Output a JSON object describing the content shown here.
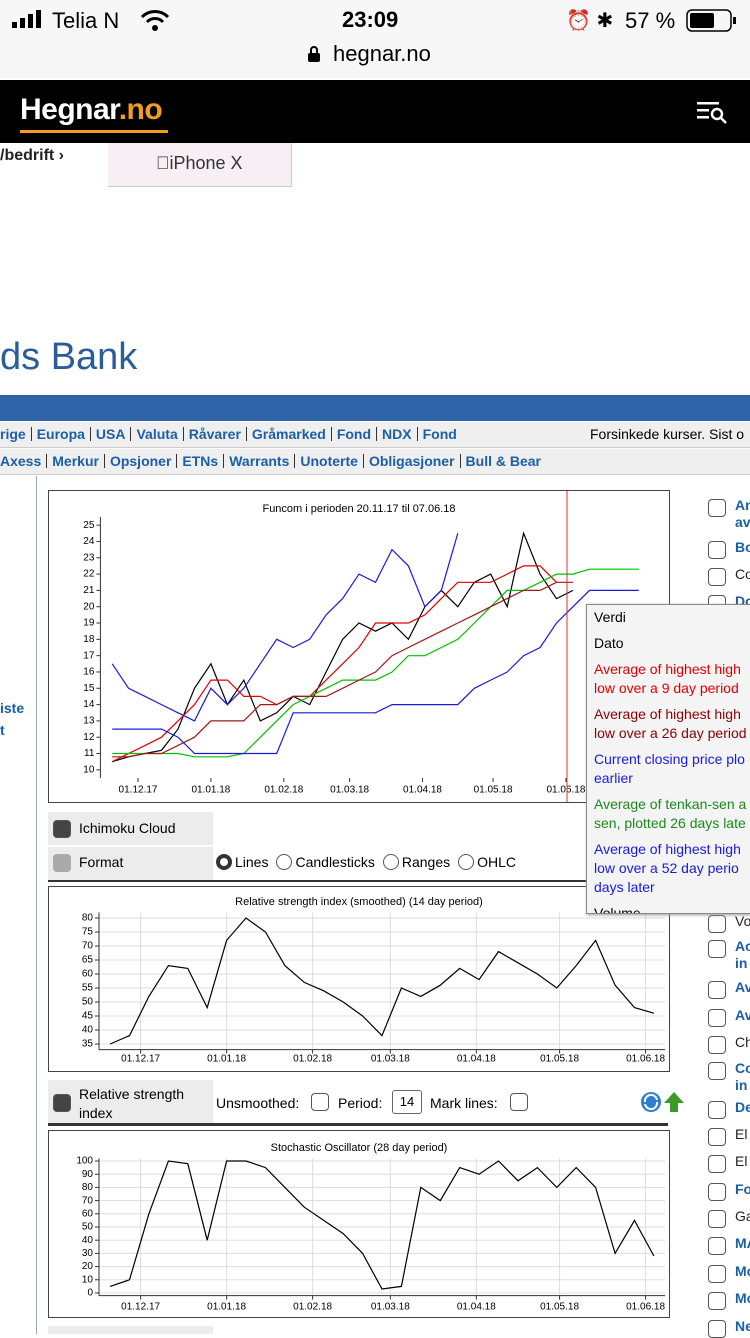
{
  "status": {
    "carrier": "Telia N",
    "time": "23:09",
    "battery": "57 %",
    "url": "hegnar.no"
  },
  "header": {
    "logo_main": "Hegnar",
    "logo_accent": ".no"
  },
  "breadcrumb": "/bedrift ›",
  "ad": "iPhone X",
  "bank_title": "ds Bank",
  "nav1": [
    "rige",
    "Europa",
    "USA",
    "Valuta",
    "Råvarer",
    "Gråmarked",
    "Fond",
    "NDX",
    "Fond"
  ],
  "delayed": "Forsinkede kurser. Sist o",
  "nav2": [
    "Axess",
    "Merkur",
    "Opsjoner",
    "ETNs",
    "Warrants",
    "Unoterte",
    "Obligasjoner",
    "Bull & Bear"
  ],
  "left_links": [
    "iste",
    "t"
  ],
  "controls": {
    "ichimoku": "Ichimoku Cloud",
    "format": "Format",
    "format_options": [
      "Lines",
      "Candlesticks",
      "Ranges",
      "OHLC"
    ],
    "rsi": "Relative strength index",
    "unsmoothed": "Unsmoothed:",
    "period": "Period:",
    "period_value": "14",
    "mark_lines": "Mark lines:"
  },
  "tooltip": [
    {
      "lines": [
        "Verdi"
      ],
      "color": "#000000"
    },
    {
      "lines": [
        "Dato"
      ],
      "color": "#000000"
    },
    {
      "lines": [
        "Average of highest high",
        "low over a 9 day period"
      ],
      "color": "#e00000"
    },
    {
      "lines": [
        "Average of highest high",
        "low over a 26 day period"
      ],
      "color": "#8b0000"
    },
    {
      "lines": [
        "Current closing price plo",
        "earlier"
      ],
      "color": "#1a1adc"
    },
    {
      "lines": [
        "Average of tenkan-sen a",
        "sen, plotted 26 days late"
      ],
      "color": "#1a8a1a"
    },
    {
      "lines": [
        "Average of highest high",
        "low over a 52 day perio",
        "days later"
      ],
      "color": "#1a1adc"
    },
    {
      "lines": [
        "Volume"
      ],
      "color": "#000000"
    }
  ],
  "indicators": [
    {
      "lines": [
        "An",
        "av"
      ],
      "link": true
    },
    {
      "lines": [
        "Bo"
      ],
      "link": true
    },
    {
      "lines": [
        "Co"
      ],
      "link": false
    },
    {
      "lines": [
        "Do"
      ],
      "link": true
    },
    {
      "lines": [
        "Vo"
      ],
      "link": false
    },
    {
      "lines": [
        "Ac",
        "in"
      ],
      "link": true
    },
    {
      "lines": [
        "Av"
      ],
      "link": true
    },
    {
      "lines": [
        "Av"
      ],
      "link": true
    },
    {
      "lines": [
        "Ch"
      ],
      "link": false
    },
    {
      "lines": [
        "Co",
        "in"
      ],
      "link": true
    },
    {
      "lines": [
        "De"
      ],
      "link": true
    },
    {
      "lines": [
        "El"
      ],
      "link": false
    },
    {
      "lines": [
        "El"
      ],
      "link": false
    },
    {
      "lines": [
        "Fo"
      ],
      "link": true
    },
    {
      "lines": [
        "Ga"
      ],
      "link": false
    },
    {
      "lines": [
        "MA"
      ],
      "link": true
    },
    {
      "lines": [
        "Mo"
      ],
      "link": true
    },
    {
      "lines": [
        "Mo"
      ],
      "link": true
    },
    {
      "lines": [
        "Ne"
      ],
      "link": true
    }
  ],
  "chart_data": [
    {
      "type": "line",
      "title": "Funcom i perioden 20.11.17 til 07.06.18",
      "grid": false,
      "x": [
        0,
        7,
        14,
        21,
        28,
        35,
        42,
        49,
        56,
        63,
        70,
        77,
        84,
        91,
        98,
        105,
        112,
        119,
        126,
        133,
        140,
        147,
        154,
        161,
        168,
        175,
        182,
        189,
        196,
        203,
        210,
        217,
        224
      ],
      "xlim": [
        -5,
        233
      ],
      "ylim": [
        9.5,
        25.5
      ],
      "yticks": [
        10,
        11,
        12,
        13,
        14,
        15,
        16,
        17,
        18,
        19,
        20,
        21,
        22,
        23,
        24,
        25
      ],
      "xticks": [
        {
          "value": 11,
          "label": "01.12.17"
        },
        {
          "value": 42,
          "label": "01.01.18"
        },
        {
          "value": 73,
          "label": "01.02.18"
        },
        {
          "value": 101,
          "label": "01.03.18"
        },
        {
          "value": 132,
          "label": "01.04.18"
        },
        {
          "value": 162,
          "label": "01.05.18"
        },
        {
          "value": 193,
          "label": "01.06.18"
        }
      ],
      "series": [
        {
          "color": "#000000",
          "values": [
            10.5,
            10.8,
            11,
            11.2,
            12.5,
            15,
            16.5,
            14,
            15.5,
            13,
            13.5,
            14.5,
            14,
            16,
            18,
            19,
            18.5,
            19,
            18,
            20,
            21,
            20,
            21.5,
            22,
            20,
            24.5,
            22,
            20.5,
            21,
            null,
            null,
            null,
            null
          ]
        },
        {
          "color": "#1a1adc",
          "values": [
            16.5,
            15,
            14.5,
            14,
            13.5,
            13,
            15,
            14,
            15,
            16.5,
            18,
            17.5,
            18,
            19.5,
            20.5,
            22,
            21.5,
            23.5,
            22.5,
            20,
            21,
            24.5,
            null,
            null,
            null,
            null,
            null,
            null,
            null,
            null,
            null,
            null,
            null
          ]
        },
        {
          "color": "#e00000",
          "values": [
            10.5,
            11,
            11.5,
            12,
            13,
            14,
            15.5,
            15.5,
            14.5,
            14.5,
            14,
            14.5,
            14.5,
            15.5,
            16.5,
            17.5,
            19,
            19,
            19,
            19.5,
            20.5,
            21.5,
            21.5,
            21.5,
            22,
            22.5,
            22.5,
            21.5,
            null,
            null,
            null,
            null,
            null
          ]
        },
        {
          "color": "#00c000",
          "values": [
            11,
            11,
            11,
            11,
            11,
            10.8,
            10.8,
            10.8,
            11,
            12,
            13,
            14,
            14.5,
            15,
            15.5,
            15.5,
            15.5,
            16,
            17,
            17,
            17.5,
            18,
            19,
            20,
            21,
            21,
            21.5,
            22,
            22,
            22.3,
            22.3,
            22.3,
            22.3
          ]
        },
        {
          "color": "#1a1adc",
          "values": [
            12.5,
            12.5,
            12.5,
            12.5,
            12,
            11,
            11,
            11,
            11,
            11,
            11,
            13.5,
            13.5,
            13.5,
            13.5,
            13.5,
            13.5,
            14,
            14,
            14,
            14,
            14,
            15,
            15.5,
            16,
            17,
            17.5,
            19,
            20,
            21,
            21,
            21,
            21
          ]
        },
        {
          "color": "#a01818",
          "values": [
            10.8,
            10.8,
            11,
            11,
            11.5,
            12,
            13,
            13,
            13,
            14,
            14,
            14.5,
            14.5,
            14.5,
            15,
            15.5,
            16,
            17,
            17.5,
            18,
            18.5,
            19,
            19.5,
            20,
            20.5,
            21,
            21,
            21.5,
            21.5,
            null,
            null,
            null,
            null
          ]
        }
      ]
    },
    {
      "type": "line",
      "title": "Relative strength index (smoothed) (14 day period)",
      "grid": true,
      "x": [
        0,
        7,
        14,
        21,
        28,
        35,
        42,
        49,
        56,
        63,
        70,
        77,
        84,
        91,
        98,
        105,
        112,
        119,
        126,
        133,
        140,
        147,
        154,
        161,
        168,
        175,
        182,
        189,
        196
      ],
      "xlim": [
        -4,
        200
      ],
      "ylim": [
        33,
        82
      ],
      "yticks": [
        35,
        40,
        45,
        50,
        55,
        60,
        65,
        70,
        75,
        80
      ],
      "xticks": [
        {
          "value": 11,
          "label": "01.12.17"
        },
        {
          "value": 42,
          "label": "01.01.18"
        },
        {
          "value": 73,
          "label": "01.02.18"
        },
        {
          "value": 101,
          "label": "01.03.18"
        },
        {
          "value": 132,
          "label": "01.04.18"
        },
        {
          "value": 162,
          "label": "01.05.18"
        },
        {
          "value": 193,
          "label": "01.06.18"
        }
      ],
      "series": [
        {
          "color": "#000000",
          "values": [
            35,
            38,
            52,
            63,
            62,
            48,
            72,
            80,
            75,
            63,
            57,
            54,
            50,
            45,
            38,
            55,
            52,
            56,
            62,
            58,
            68,
            64,
            60,
            55,
            63,
            72,
            56,
            48,
            46
          ]
        }
      ]
    },
    {
      "type": "line",
      "title": "Stochastic Oscillator (28 day period)",
      "grid": true,
      "x": [
        0,
        7,
        14,
        21,
        28,
        35,
        42,
        49,
        56,
        63,
        70,
        77,
        84,
        91,
        98,
        105,
        112,
        119,
        126,
        133,
        140,
        147,
        154,
        161,
        168,
        175,
        182,
        189,
        196
      ],
      "xlim": [
        -4,
        200
      ],
      "ylim": [
        -2,
        102
      ],
      "yticks": [
        0,
        10,
        20,
        30,
        40,
        50,
        60,
        70,
        80,
        90,
        100
      ],
      "xticks": [
        {
          "value": 11,
          "label": "01.12.17"
        },
        {
          "value": 42,
          "label": "01.01.18"
        },
        {
          "value": 73,
          "label": "01.02.18"
        },
        {
          "value": 101,
          "label": "01.03.18"
        },
        {
          "value": 132,
          "label": "01.04.18"
        },
        {
          "value": 162,
          "label": "01.05.18"
        },
        {
          "value": 193,
          "label": "01.06.18"
        }
      ],
      "series": [
        {
          "color": "#000000",
          "values": [
            5,
            10,
            60,
            100,
            98,
            40,
            100,
            100,
            95,
            80,
            65,
            55,
            45,
            30,
            3,
            5,
            80,
            70,
            95,
            90,
            100,
            85,
            95,
            80,
            95,
            80,
            30,
            55,
            28
          ]
        }
      ]
    }
  ]
}
